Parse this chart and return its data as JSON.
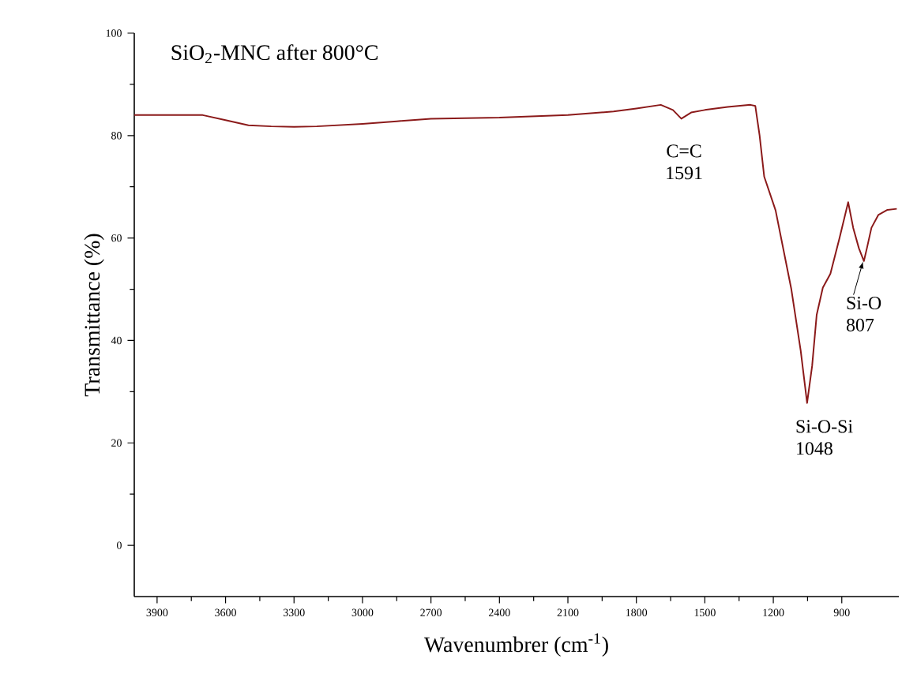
{
  "chart_data": {
    "type": "line",
    "title": "SiO$_{2}$-MNC after 800°C",
    "xlabel": "Wavenumbrer (cm$^{-1}$)",
    "ylabel": "Transmittance (%)",
    "x": [
      4000,
      3900,
      3750,
      3700,
      3600,
      3500,
      3400,
      3300,
      3200,
      3000,
      2850,
      2700,
      2400,
      2100,
      1900,
      1800,
      1693,
      1640,
      1603,
      1560,
      1500,
      1400,
      1300,
      1279,
      1260,
      1240,
      1190,
      1121,
      1080,
      1052,
      1030,
      1010,
      983,
      950,
      910,
      872,
      850,
      825,
      803,
      790,
      770,
      740,
      700,
      659
    ],
    "series": [
      {
        "color": "#8b1a1a",
        "values": [
          84,
          84,
          84,
          84,
          83,
          82,
          81.8,
          81.7,
          81.8,
          82.3,
          82.8,
          83.3,
          83.5,
          84,
          84.7,
          85.3,
          86,
          85,
          83.3,
          84.5,
          85,
          85.6,
          86,
          85.8,
          80,
          72,
          65.4,
          50,
          38,
          27.8,
          35,
          45,
          50.3,
          53,
          60,
          67,
          62,
          58,
          55.5,
          58,
          62,
          64.5,
          65.5,
          65.7
        ]
      }
    ],
    "xlim": [
      4000,
      650
    ],
    "ylim": [
      -10,
      100
    ],
    "xticks": [
      3900,
      3600,
      3300,
      3000,
      2700,
      2400,
      2100,
      1800,
      1500,
      1200,
      900
    ],
    "yticks": [
      0,
      20,
      40,
      60,
      80,
      100
    ],
    "annotations": [
      {
        "text": "C=C 1591",
        "x": 1591,
        "y": 83
      },
      {
        "text": "Si-O-Si 1048",
        "x": 1048,
        "y": 28
      },
      {
        "text": "Si-O 807",
        "x": 807,
        "y": 56
      }
    ],
    "grid": false,
    "marker": "none",
    "line_style": "solid"
  }
}
